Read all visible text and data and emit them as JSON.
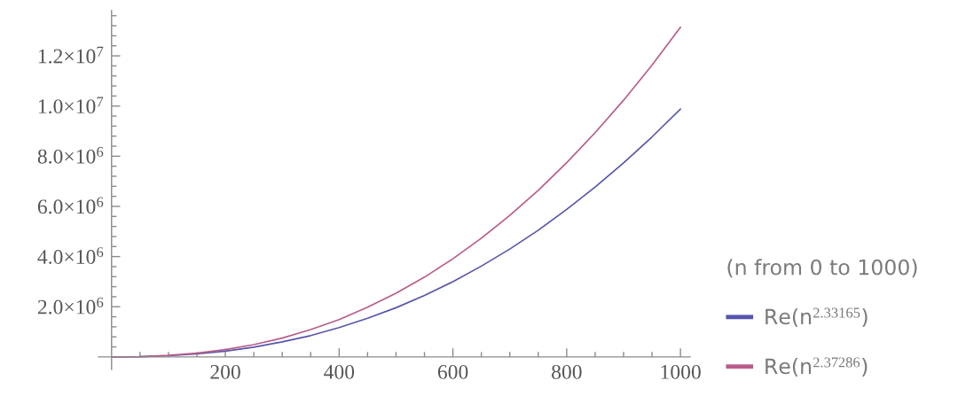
{
  "chart_data": {
    "type": "line",
    "legend_title": "(n from 0 to 1000)",
    "x": [
      0,
      50,
      100,
      150,
      200,
      250,
      300,
      350,
      400,
      450,
      500,
      550,
      600,
      650,
      700,
      750,
      800,
      850,
      900,
      950,
      1000
    ],
    "series": [
      {
        "name": "Re(n$^{2.33165}$)",
        "color": "#5656ab",
        "values": [
          0,
          10000,
          50000,
          120000,
          230000,
          390000,
          600000,
          850000,
          1170000,
          1540000,
          1960000,
          2450000,
          3000000,
          3620000,
          4300000,
          5050000,
          5880000,
          6770000,
          7730000,
          8770000,
          9880000
        ]
      },
      {
        "name": "Re(n$^{2.37286}$)",
        "color": "#b85c8a",
        "values": [
          0,
          10000,
          60000,
          150000,
          290000,
          490000,
          750000,
          1090000,
          1490000,
          1980000,
          2540000,
          3180000,
          3910000,
          4730000,
          5640000,
          6640000,
          7740000,
          8940000,
          10230000,
          11630000,
          13140000
        ]
      }
    ],
    "xlim": [
      -23,
      1017
    ],
    "ylim": [
      -500000,
      13800000
    ],
    "xticks": [
      {
        "value": 50,
        "label": null
      },
      {
        "value": 100,
        "label": null
      },
      {
        "value": 150,
        "label": null
      },
      200,
      {
        "value": 250,
        "label": null
      },
      {
        "value": 300,
        "label": null
      },
      {
        "value": 350,
        "label": null
      },
      400,
      {
        "value": 450,
        "label": null
      },
      {
        "value": 500,
        "label": null
      },
      {
        "value": 550,
        "label": null
      },
      600,
      {
        "value": 650,
        "label": null
      },
      {
        "value": 700,
        "label": null
      },
      {
        "value": 750,
        "label": null
      },
      800,
      {
        "value": 850,
        "label": null
      },
      {
        "value": 900,
        "label": null
      },
      {
        "value": 950,
        "label": null
      },
      1000
    ],
    "yticks": [
      {
        "value": 400000,
        "label": null
      },
      {
        "value": 800000,
        "label": null
      },
      {
        "value": 1200000,
        "label": null
      },
      {
        "value": 1600000,
        "label": null
      },
      {
        "value": 2000000,
        "label": "2.0×10$^{6}$"
      },
      {
        "value": 2400000,
        "label": null
      },
      {
        "value": 2800000,
        "label": null
      },
      {
        "value": 3200000,
        "label": null
      },
      {
        "value": 3600000,
        "label": null
      },
      {
        "value": 4000000,
        "label": "4.0×10$^{6}$"
      },
      {
        "value": 4400000,
        "label": null
      },
      {
        "value": 4800000,
        "label": null
      },
      {
        "value": 5200000,
        "label": null
      },
      {
        "value": 5600000,
        "label": null
      },
      {
        "value": 6000000,
        "label": "6.0×10$^{6}$"
      },
      {
        "value": 6400000,
        "label": null
      },
      {
        "value": 6800000,
        "label": null
      },
      {
        "value": 7200000,
        "label": null
      },
      {
        "value": 7600000,
        "label": null
      },
      {
        "value": 8000000,
        "label": "8.0×10$^{6}$"
      },
      {
        "value": 8400000,
        "label": null
      },
      {
        "value": 8800000,
        "label": null
      },
      {
        "value": 9200000,
        "label": null
      },
      {
        "value": 9600000,
        "label": null
      },
      {
        "value": 10000000,
        "label": "1.0×10$^{7}$"
      },
      {
        "value": 10400000,
        "label": null
      },
      {
        "value": 10800000,
        "label": null
      },
      {
        "value": 11200000,
        "label": null
      },
      {
        "value": 11600000,
        "label": null
      },
      {
        "value": 12000000,
        "label": "1.2×10$^{7}$"
      },
      {
        "value": 12400000,
        "label": null
      },
      {
        "value": 12800000,
        "label": null
      },
      {
        "value": 13200000,
        "label": null
      },
      {
        "value": 13600000,
        "label": null
      }
    ],
    "legend": "bottom right",
    "line_style": "solid"
  }
}
